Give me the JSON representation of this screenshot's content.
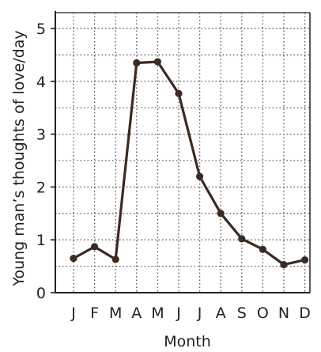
{
  "chart_data": {
    "type": "line",
    "title": "",
    "xlabel": "Month",
    "ylabel": "Young man’s thoughts of love/day",
    "categories": [
      "J",
      "F",
      "M",
      "A",
      "M",
      "J",
      "J",
      "A",
      "S",
      "O",
      "N",
      "D"
    ],
    "series": [
      {
        "name": "",
        "values": [
          0.65,
          0.87,
          0.63,
          4.35,
          4.37,
          3.77,
          2.2,
          1.5,
          1.02,
          0.82,
          0.53,
          0.62
        ]
      }
    ],
    "y_ticks": [
      "0",
      "1",
      "2",
      "3",
      "4",
      "5"
    ],
    "ylim": [
      0,
      5.3
    ],
    "grid": true,
    "grid_style": "dotted",
    "legend": "none",
    "colors": {
      "line": "#3b2a22",
      "marker": "#3b2a22",
      "axis": "#222222",
      "grid": "#555555",
      "text": "#222222"
    }
  }
}
